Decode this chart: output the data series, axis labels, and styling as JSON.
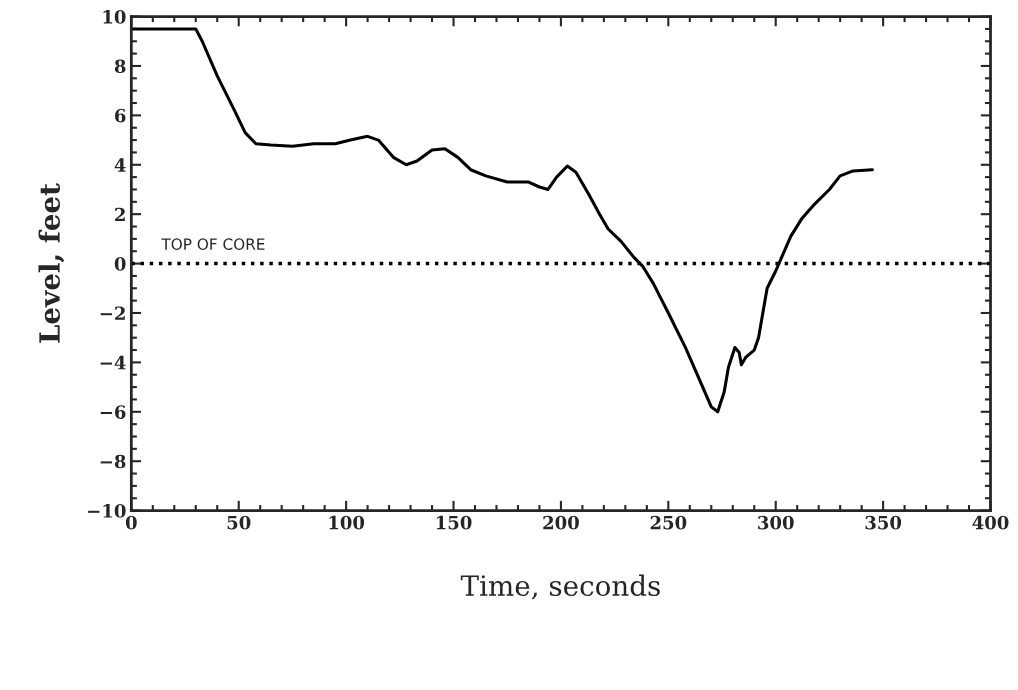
{
  "chart_data": {
    "type": "line",
    "xlabel": "Time, seconds",
    "ylabel": "Level, feet",
    "x": [
      0,
      30,
      33,
      40,
      48,
      53,
      58,
      65,
      75,
      85,
      95,
      102,
      110,
      115,
      122,
      128,
      133,
      140,
      146,
      152,
      158,
      165,
      175,
      185,
      190,
      194,
      198,
      203,
      207,
      213,
      218,
      222,
      228,
      234,
      238,
      243,
      250,
      258,
      265,
      270,
      273,
      276,
      278,
      281,
      283,
      284,
      286,
      290,
      292,
      294,
      296,
      300,
      303,
      307,
      312,
      318,
      325,
      330,
      336,
      345
    ],
    "series": [
      {
        "color": "#000000",
        "values": [
          9.5,
          9.5,
          9.0,
          7.6,
          6.2,
          5.3,
          4.85,
          4.8,
          4.75,
          4.85,
          4.85,
          5.0,
          5.15,
          5.0,
          4.3,
          4.0,
          4.15,
          4.6,
          4.65,
          4.3,
          3.8,
          3.55,
          3.3,
          3.3,
          3.1,
          3.0,
          3.5,
          3.95,
          3.7,
          2.8,
          2.0,
          1.4,
          0.9,
          0.25,
          -0.1,
          -0.8,
          -2.0,
          -3.4,
          -4.8,
          -5.8,
          -6.0,
          -5.2,
          -4.2,
          -3.4,
          -3.6,
          -4.1,
          -3.8,
          -3.5,
          -3.0,
          -2.0,
          -1.0,
          -0.3,
          0.3,
          1.1,
          1.8,
          2.4,
          3.0,
          3.55,
          3.75,
          3.8
        ]
      }
    ],
    "xlim": [
      0,
      400
    ],
    "xticks": [
      0,
      50,
      100,
      150,
      200,
      250,
      300,
      350,
      400
    ],
    "ylim": [
      -10,
      10
    ],
    "yticks": [
      -10,
      -8,
      -6,
      -4,
      -2,
      0,
      2,
      4,
      6,
      8,
      10
    ],
    "ref_lines": [
      {
        "axis": "y",
        "value": 0,
        "label": "TOP OF CORE",
        "color": "#000000",
        "line_style": "dotted"
      }
    ],
    "grid": false,
    "legend": false,
    "marker": "none",
    "line_style": "solid"
  }
}
